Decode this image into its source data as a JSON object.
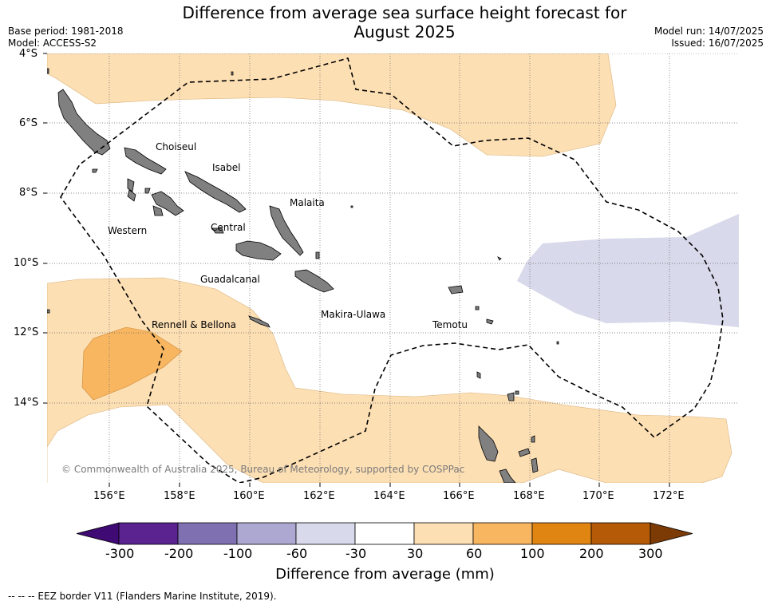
{
  "header": {
    "title_line1": "Difference from average sea surface height forecast for",
    "title_line2": "August 2025",
    "base_period": "Base period: 1981-2018",
    "model": "Model: ACCESS-S2",
    "model_run": "Model run: 14/07/2025",
    "issued": "Issued: 16/07/2025"
  },
  "map": {
    "lat_ticks": [
      "4°S",
      "6°S",
      "8°S",
      "10°S",
      "12°S",
      "14°S"
    ],
    "lon_ticks": [
      "156°E",
      "158°E",
      "160°E",
      "162°E",
      "164°E",
      "166°E",
      "168°E",
      "170°E",
      "172°E"
    ],
    "province_labels": {
      "choiseul": "Choiseul",
      "isabel": "Isabel",
      "malaita": "Malaita",
      "western": "Western",
      "central": "Central",
      "guadalcanal": "Guadalcanal",
      "rennell": "Rennell & Bellona",
      "makira": "Makira-Ulawa",
      "temotu": "Temotu"
    },
    "copyright": "© Commonwealth of Australia 2025, Bureau of Meteorology, supported by COSPPac",
    "colors": {
      "ocean": "#ffffff",
      "land": "#808080",
      "band_30_60": "#fddfb4",
      "band_60_100": "#f9b661",
      "band_neg60_neg30": "#d8d9ea",
      "grid": "#666666",
      "eez_border": "#000000"
    }
  },
  "colorbar": {
    "title": "Difference from average (mm)",
    "tick_labels": [
      "-300",
      "-200",
      "-100",
      "-60",
      "-30",
      "30",
      "60",
      "100",
      "200",
      "300"
    ],
    "colors": [
      "#3f0a73",
      "#5a2390",
      "#7f71b1",
      "#ada8d1",
      "#d8d9ea",
      "#ffffff",
      "#fddfb4",
      "#f9b661",
      "#e08412",
      "#b55a06",
      "#7c3a05"
    ]
  },
  "footer": {
    "legend_text": "--  --  -- EEZ border V11 (Flanders Marine Institute, 2019)."
  }
}
